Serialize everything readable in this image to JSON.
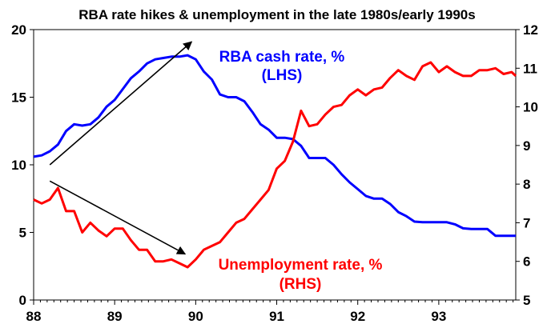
{
  "chart_data": {
    "type": "line",
    "title": "RBA rate hikes & unemployment in the late 1980s/early 1990s",
    "xlabel": "",
    "ylabel_left": "",
    "ylabel_right": "",
    "xlim": [
      1988,
      1993.95
    ],
    "xticks": [
      "88",
      "89",
      "90",
      "91",
      "92",
      "93"
    ],
    "y_left": {
      "lim": [
        0,
        20
      ],
      "ticks": [
        "0",
        "5",
        "10",
        "15",
        "20"
      ]
    },
    "y_right": {
      "lim": [
        5,
        12
      ],
      "ticks": [
        "5",
        "6",
        "7",
        "8",
        "9",
        "10",
        "11",
        "12"
      ]
    },
    "grid": false,
    "legend": "none",
    "annotations": {
      "blue_line1": "RBA cash rate, %",
      "blue_line2": "(LHS)",
      "red_line1": "Unemployment rate, %",
      "red_line2": "(RHS)"
    },
    "arrows": [
      {
        "axis": "left",
        "from": [
          1988.2,
          10
        ],
        "to": [
          1989.95,
          19.1
        ]
      },
      {
        "axis": "left",
        "from": [
          1988.2,
          8.8
        ],
        "to": [
          1989.87,
          3.4
        ]
      }
    ],
    "series": [
      {
        "name": "RBA cash rate, %",
        "axis": "left",
        "color": "#0000ff",
        "x": [
          1988.0,
          1988.1,
          1988.2,
          1988.3,
          1988.4,
          1988.5,
          1988.6,
          1988.7,
          1988.8,
          1988.9,
          1989.0,
          1989.1,
          1989.2,
          1989.3,
          1989.4,
          1989.5,
          1989.6,
          1989.7,
          1989.8,
          1989.9,
          1990.0,
          1990.1,
          1990.2,
          1990.3,
          1990.4,
          1990.5,
          1990.6,
          1990.7,
          1990.8,
          1990.9,
          1991.0,
          1991.1,
          1991.2,
          1991.3,
          1991.4,
          1991.5,
          1991.6,
          1991.7,
          1991.8,
          1991.9,
          1992.0,
          1992.1,
          1992.2,
          1992.3,
          1992.4,
          1992.5,
          1992.6,
          1992.7,
          1992.8,
          1992.9,
          1993.0,
          1993.1,
          1993.2,
          1993.3,
          1993.4,
          1993.5,
          1993.6,
          1993.7,
          1993.8,
          1993.9,
          1993.95
        ],
        "values": [
          10.6,
          10.7,
          11.0,
          11.5,
          12.5,
          13.0,
          12.9,
          13.0,
          13.5,
          14.3,
          14.8,
          15.6,
          16.4,
          16.9,
          17.5,
          17.8,
          17.9,
          18.0,
          18.0,
          18.1,
          17.8,
          16.9,
          16.3,
          15.2,
          15.0,
          15.0,
          14.7,
          13.9,
          13.0,
          12.6,
          12.0,
          12.0,
          11.9,
          11.4,
          10.5,
          10.5,
          10.5,
          10.0,
          9.3,
          8.7,
          8.2,
          7.7,
          7.5,
          7.5,
          7.1,
          6.5,
          6.2,
          5.8,
          5.75,
          5.75,
          5.75,
          5.75,
          5.6,
          5.3,
          5.25,
          5.25,
          5.25,
          4.75,
          4.75,
          4.75,
          4.75
        ]
      },
      {
        "name": "Unemployment rate, %",
        "axis": "right",
        "color": "#ff0000",
        "x": [
          1988.0,
          1988.1,
          1988.2,
          1988.3,
          1988.4,
          1988.5,
          1988.6,
          1988.7,
          1988.8,
          1988.9,
          1989.0,
          1989.1,
          1989.2,
          1989.3,
          1989.4,
          1989.5,
          1989.6,
          1989.7,
          1989.8,
          1989.9,
          1990.0,
          1990.1,
          1990.2,
          1990.3,
          1990.4,
          1990.5,
          1990.6,
          1990.7,
          1990.8,
          1990.9,
          1991.0,
          1991.1,
          1991.2,
          1991.3,
          1991.4,
          1991.5,
          1991.6,
          1991.7,
          1991.8,
          1991.9,
          1992.0,
          1992.1,
          1992.2,
          1992.3,
          1992.4,
          1992.5,
          1992.6,
          1992.7,
          1992.8,
          1992.9,
          1993.0,
          1993.1,
          1993.2,
          1993.3,
          1993.4,
          1993.5,
          1993.6,
          1993.7,
          1993.8,
          1993.9,
          1993.95
        ],
        "values": [
          7.6,
          7.5,
          7.6,
          7.9,
          7.3,
          7.3,
          6.75,
          7.0,
          6.8,
          6.65,
          6.85,
          6.85,
          6.55,
          6.3,
          6.3,
          6.0,
          6.0,
          6.05,
          5.95,
          5.85,
          6.05,
          6.3,
          6.4,
          6.5,
          6.75,
          7.0,
          7.1,
          7.35,
          7.6,
          7.85,
          8.4,
          8.6,
          9.1,
          9.9,
          9.5,
          9.55,
          9.8,
          10.0,
          10.05,
          10.3,
          10.45,
          10.3,
          10.45,
          10.5,
          10.75,
          10.95,
          10.8,
          10.7,
          11.05,
          11.15,
          10.9,
          11.05,
          10.9,
          10.8,
          10.8,
          10.95,
          10.95,
          11.0,
          10.85,
          10.9,
          10.8
        ]
      }
    ]
  }
}
